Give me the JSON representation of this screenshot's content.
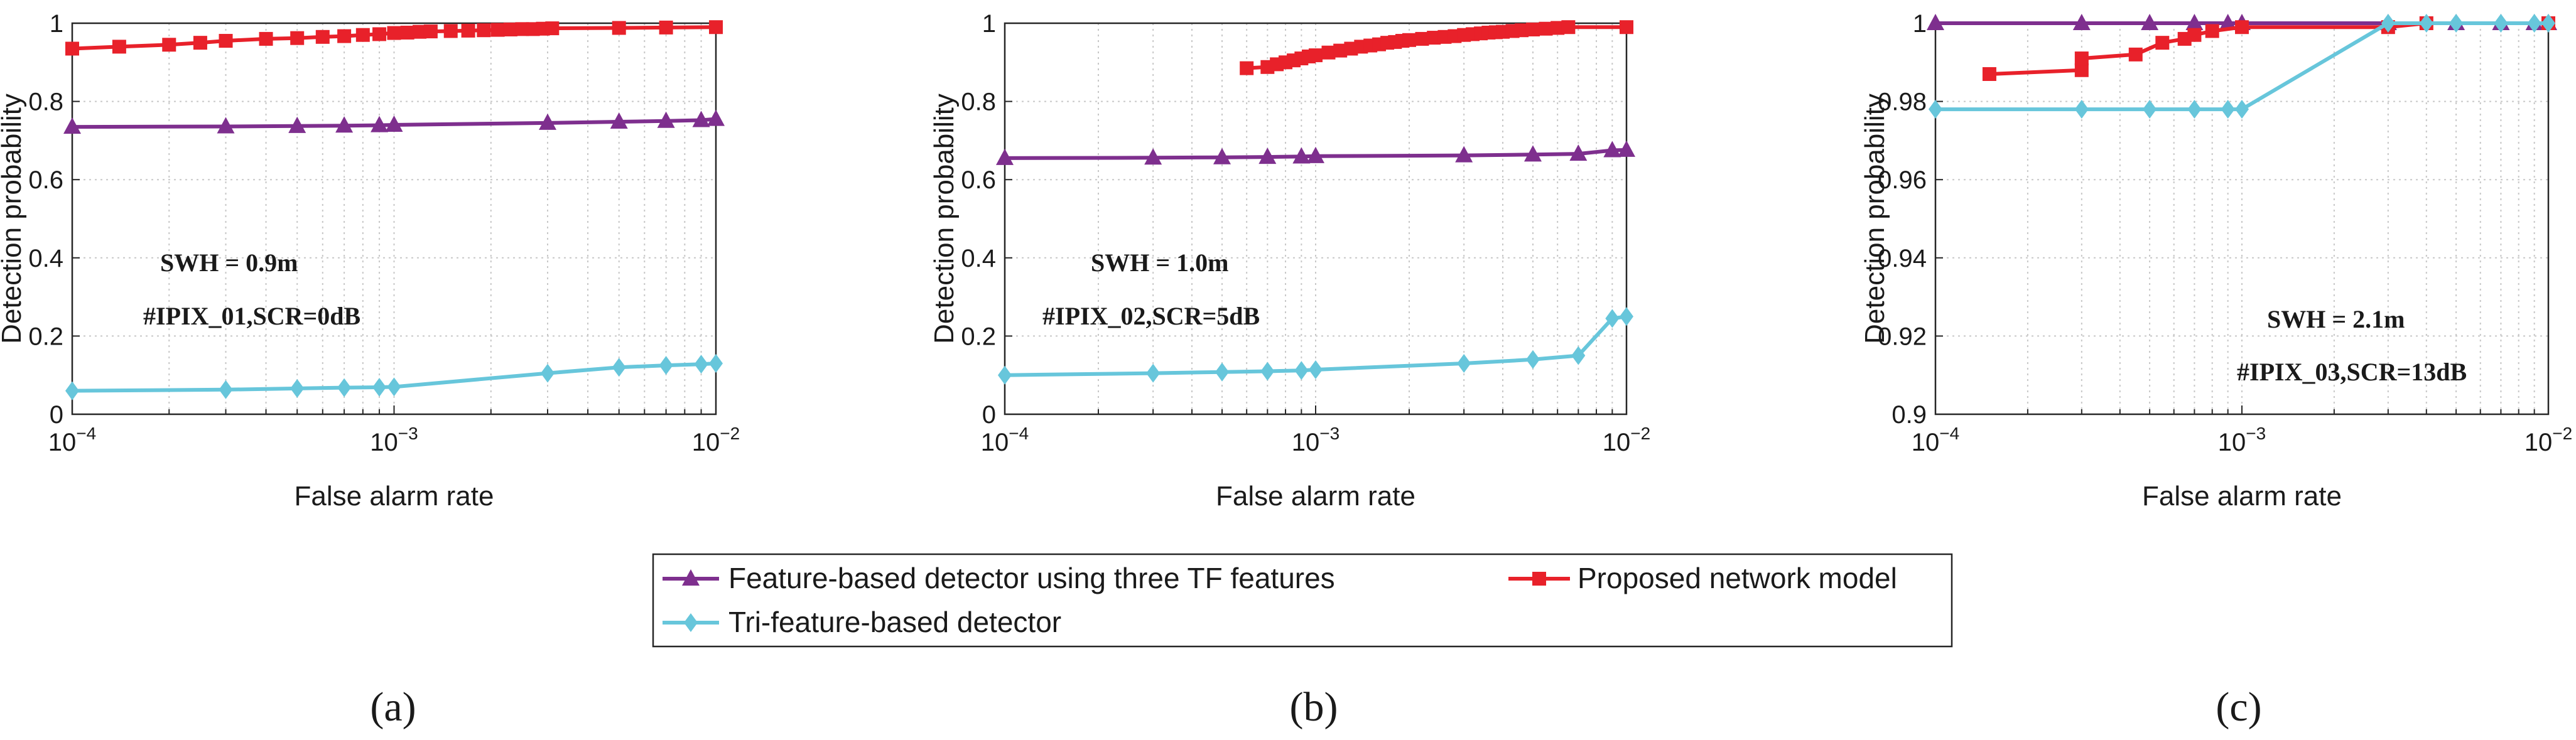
{
  "colors": {
    "feature": "#7e2f8e",
    "proposed": "#e8212a",
    "tri": "#67c6db",
    "grid": "#c8c8c8",
    "axis": "#262626"
  },
  "legend": {
    "feature": "Feature-based detector using three TF features",
    "proposed": "Proposed network model",
    "tri": "Tri-feature-based detector"
  },
  "chart_data": [
    {
      "type": "line",
      "panel_label": "(a)",
      "xlabel": "False alarm rate",
      "ylabel": "Detection probability",
      "xscale": "log",
      "xlim": [
        0.0001,
        0.01
      ],
      "ylim": [
        0,
        1
      ],
      "yticks": [
        0,
        0.2,
        0.4,
        0.6,
        0.8,
        1
      ],
      "ytick_labels": [
        "0",
        "0.2",
        "0.4",
        "0.6",
        "0.8",
        "1"
      ],
      "grid": true,
      "annotations": [
        "SWH = 0.9m",
        "#IPIX_01,SCR=0dB"
      ],
      "series": [
        {
          "name": "Feature-based detector using three TF features",
          "key": "feature",
          "marker": "triangle",
          "x": [
            0.0001,
            0.0003,
            0.0005,
            0.0007,
            0.0009,
            0.001,
            0.003,
            0.005,
            0.007,
            0.009,
            0.01
          ],
          "y": [
            0.735,
            0.736,
            0.737,
            0.738,
            0.739,
            0.74,
            0.745,
            0.748,
            0.75,
            0.752,
            0.755
          ]
        },
        {
          "name": "Proposed network model",
          "key": "proposed",
          "marker": "square",
          "x": [
            0.0001,
            0.00014,
            0.0002,
            0.00025,
            0.0003,
            0.0004,
            0.0005,
            0.0006,
            0.0007,
            0.0008,
            0.0009,
            0.001,
            0.0011,
            0.0012,
            0.0013,
            0.0015,
            0.0017,
            0.0019,
            0.0021,
            0.0023,
            0.0025,
            0.0027,
            0.0029,
            0.0031,
            0.005,
            0.007,
            0.01
          ],
          "y": [
            0.935,
            0.94,
            0.945,
            0.95,
            0.955,
            0.96,
            0.962,
            0.965,
            0.967,
            0.97,
            0.972,
            0.975,
            0.976,
            0.978,
            0.979,
            0.98,
            0.981,
            0.982,
            0.983,
            0.984,
            0.985,
            0.985,
            0.986,
            0.987,
            0.988,
            0.989,
            0.99
          ]
        },
        {
          "name": "Tri-feature-based detector",
          "key": "tri",
          "marker": "diamond",
          "x": [
            0.0001,
            0.0003,
            0.0005,
            0.0007,
            0.0009,
            0.001,
            0.003,
            0.005,
            0.007,
            0.009,
            0.01
          ],
          "y": [
            0.06,
            0.063,
            0.066,
            0.068,
            0.069,
            0.07,
            0.105,
            0.12,
            0.125,
            0.128,
            0.13
          ]
        }
      ]
    },
    {
      "type": "line",
      "panel_label": "(b)",
      "xlabel": "False alarm rate",
      "ylabel": "Detection probability",
      "xscale": "log",
      "xlim": [
        0.0001,
        0.01
      ],
      "ylim": [
        0,
        1
      ],
      "yticks": [
        0,
        0.2,
        0.4,
        0.6,
        0.8,
        1
      ],
      "ytick_labels": [
        "0",
        "0.2",
        "0.4",
        "0.6",
        "0.8",
        "1"
      ],
      "grid": true,
      "annotations": [
        "SWH = 1.0m",
        "#IPIX_02,SCR=5dB"
      ],
      "series": [
        {
          "name": "Feature-based detector using three TF features",
          "key": "feature",
          "marker": "triangle",
          "x": [
            0.0001,
            0.0003,
            0.0005,
            0.0007,
            0.0009,
            0.001,
            0.003,
            0.005,
            0.007,
            0.009,
            0.01
          ],
          "y": [
            0.655,
            0.656,
            0.657,
            0.658,
            0.659,
            0.66,
            0.662,
            0.664,
            0.666,
            0.675,
            0.676
          ]
        },
        {
          "name": "Proposed network model",
          "key": "proposed",
          "marker": "square",
          "x": [
            0.0006,
            0.0007,
            0.00075,
            0.0008,
            0.00085,
            0.0009,
            0.00095,
            0.001,
            0.0011,
            0.0012,
            0.0013,
            0.0014,
            0.0015,
            0.0016,
            0.0017,
            0.0018,
            0.0019,
            0.002,
            0.0022,
            0.0024,
            0.0026,
            0.0028,
            0.003,
            0.0032,
            0.0034,
            0.0036,
            0.0038,
            0.004,
            0.0043,
            0.0046,
            0.005,
            0.0055,
            0.006,
            0.0065,
            0.01
          ],
          "y": [
            0.885,
            0.888,
            0.895,
            0.9,
            0.905,
            0.91,
            0.915,
            0.918,
            0.925,
            0.93,
            0.935,
            0.94,
            0.943,
            0.946,
            0.95,
            0.952,
            0.955,
            0.957,
            0.96,
            0.963,
            0.965,
            0.967,
            0.97,
            0.972,
            0.974,
            0.976,
            0.977,
            0.978,
            0.98,
            0.982,
            0.984,
            0.986,
            0.988,
            0.99,
            0.99
          ]
        },
        {
          "name": "Tri-feature-based detector",
          "key": "tri",
          "marker": "diamond",
          "x": [
            0.0001,
            0.0003,
            0.0005,
            0.0007,
            0.0009,
            0.001,
            0.003,
            0.005,
            0.007,
            0.009,
            0.01
          ],
          "y": [
            0.1,
            0.105,
            0.108,
            0.11,
            0.112,
            0.114,
            0.13,
            0.14,
            0.15,
            0.245,
            0.25
          ]
        }
      ]
    },
    {
      "type": "line",
      "panel_label": "(c)",
      "xlabel": "False alarm rate",
      "ylabel": "Detection probability",
      "xscale": "log",
      "xlim": [
        0.0001,
        0.01
      ],
      "ylim": [
        0.9,
        1
      ],
      "yticks": [
        0.9,
        0.92,
        0.94,
        0.96,
        0.98,
        1
      ],
      "ytick_labels": [
        "0.9",
        "0.92",
        "0.94",
        "0.96",
        "0.98",
        "1"
      ],
      "grid": true,
      "annotations": [
        "SWH = 2.1m",
        "#IPIX_03,SCR=13dB"
      ],
      "series": [
        {
          "name": "Feature-based detector using three TF features",
          "key": "feature",
          "marker": "triangle",
          "x": [
            0.0001,
            0.0003,
            0.0005,
            0.0007,
            0.0009,
            0.001,
            0.003,
            0.005,
            0.007,
            0.009,
            0.01
          ],
          "y": [
            1,
            1,
            1,
            1,
            1,
            1,
            1,
            1,
            1,
            1,
            1
          ]
        },
        {
          "name": "Proposed network model",
          "key": "proposed",
          "marker": "square",
          "x": [
            0.00015,
            0.0003,
            0.0003,
            0.00045,
            0.00055,
            0.00065,
            0.0007,
            0.0008,
            0.001,
            0.003,
            0.004,
            0.01
          ],
          "y": [
            0.987,
            0.988,
            0.991,
            0.992,
            0.995,
            0.996,
            0.997,
            0.998,
            0.999,
            0.999,
            1,
            1
          ]
        },
        {
          "name": "Tri-feature-based detector",
          "key": "tri",
          "marker": "diamond",
          "x": [
            0.0001,
            0.0003,
            0.0005,
            0.0007,
            0.0009,
            0.001,
            0.003,
            0.004,
            0.005,
            0.007,
            0.009,
            0.01
          ],
          "y": [
            0.978,
            0.978,
            0.978,
            0.978,
            0.978,
            0.978,
            1,
            1,
            1,
            1,
            1,
            1
          ]
        }
      ]
    }
  ]
}
